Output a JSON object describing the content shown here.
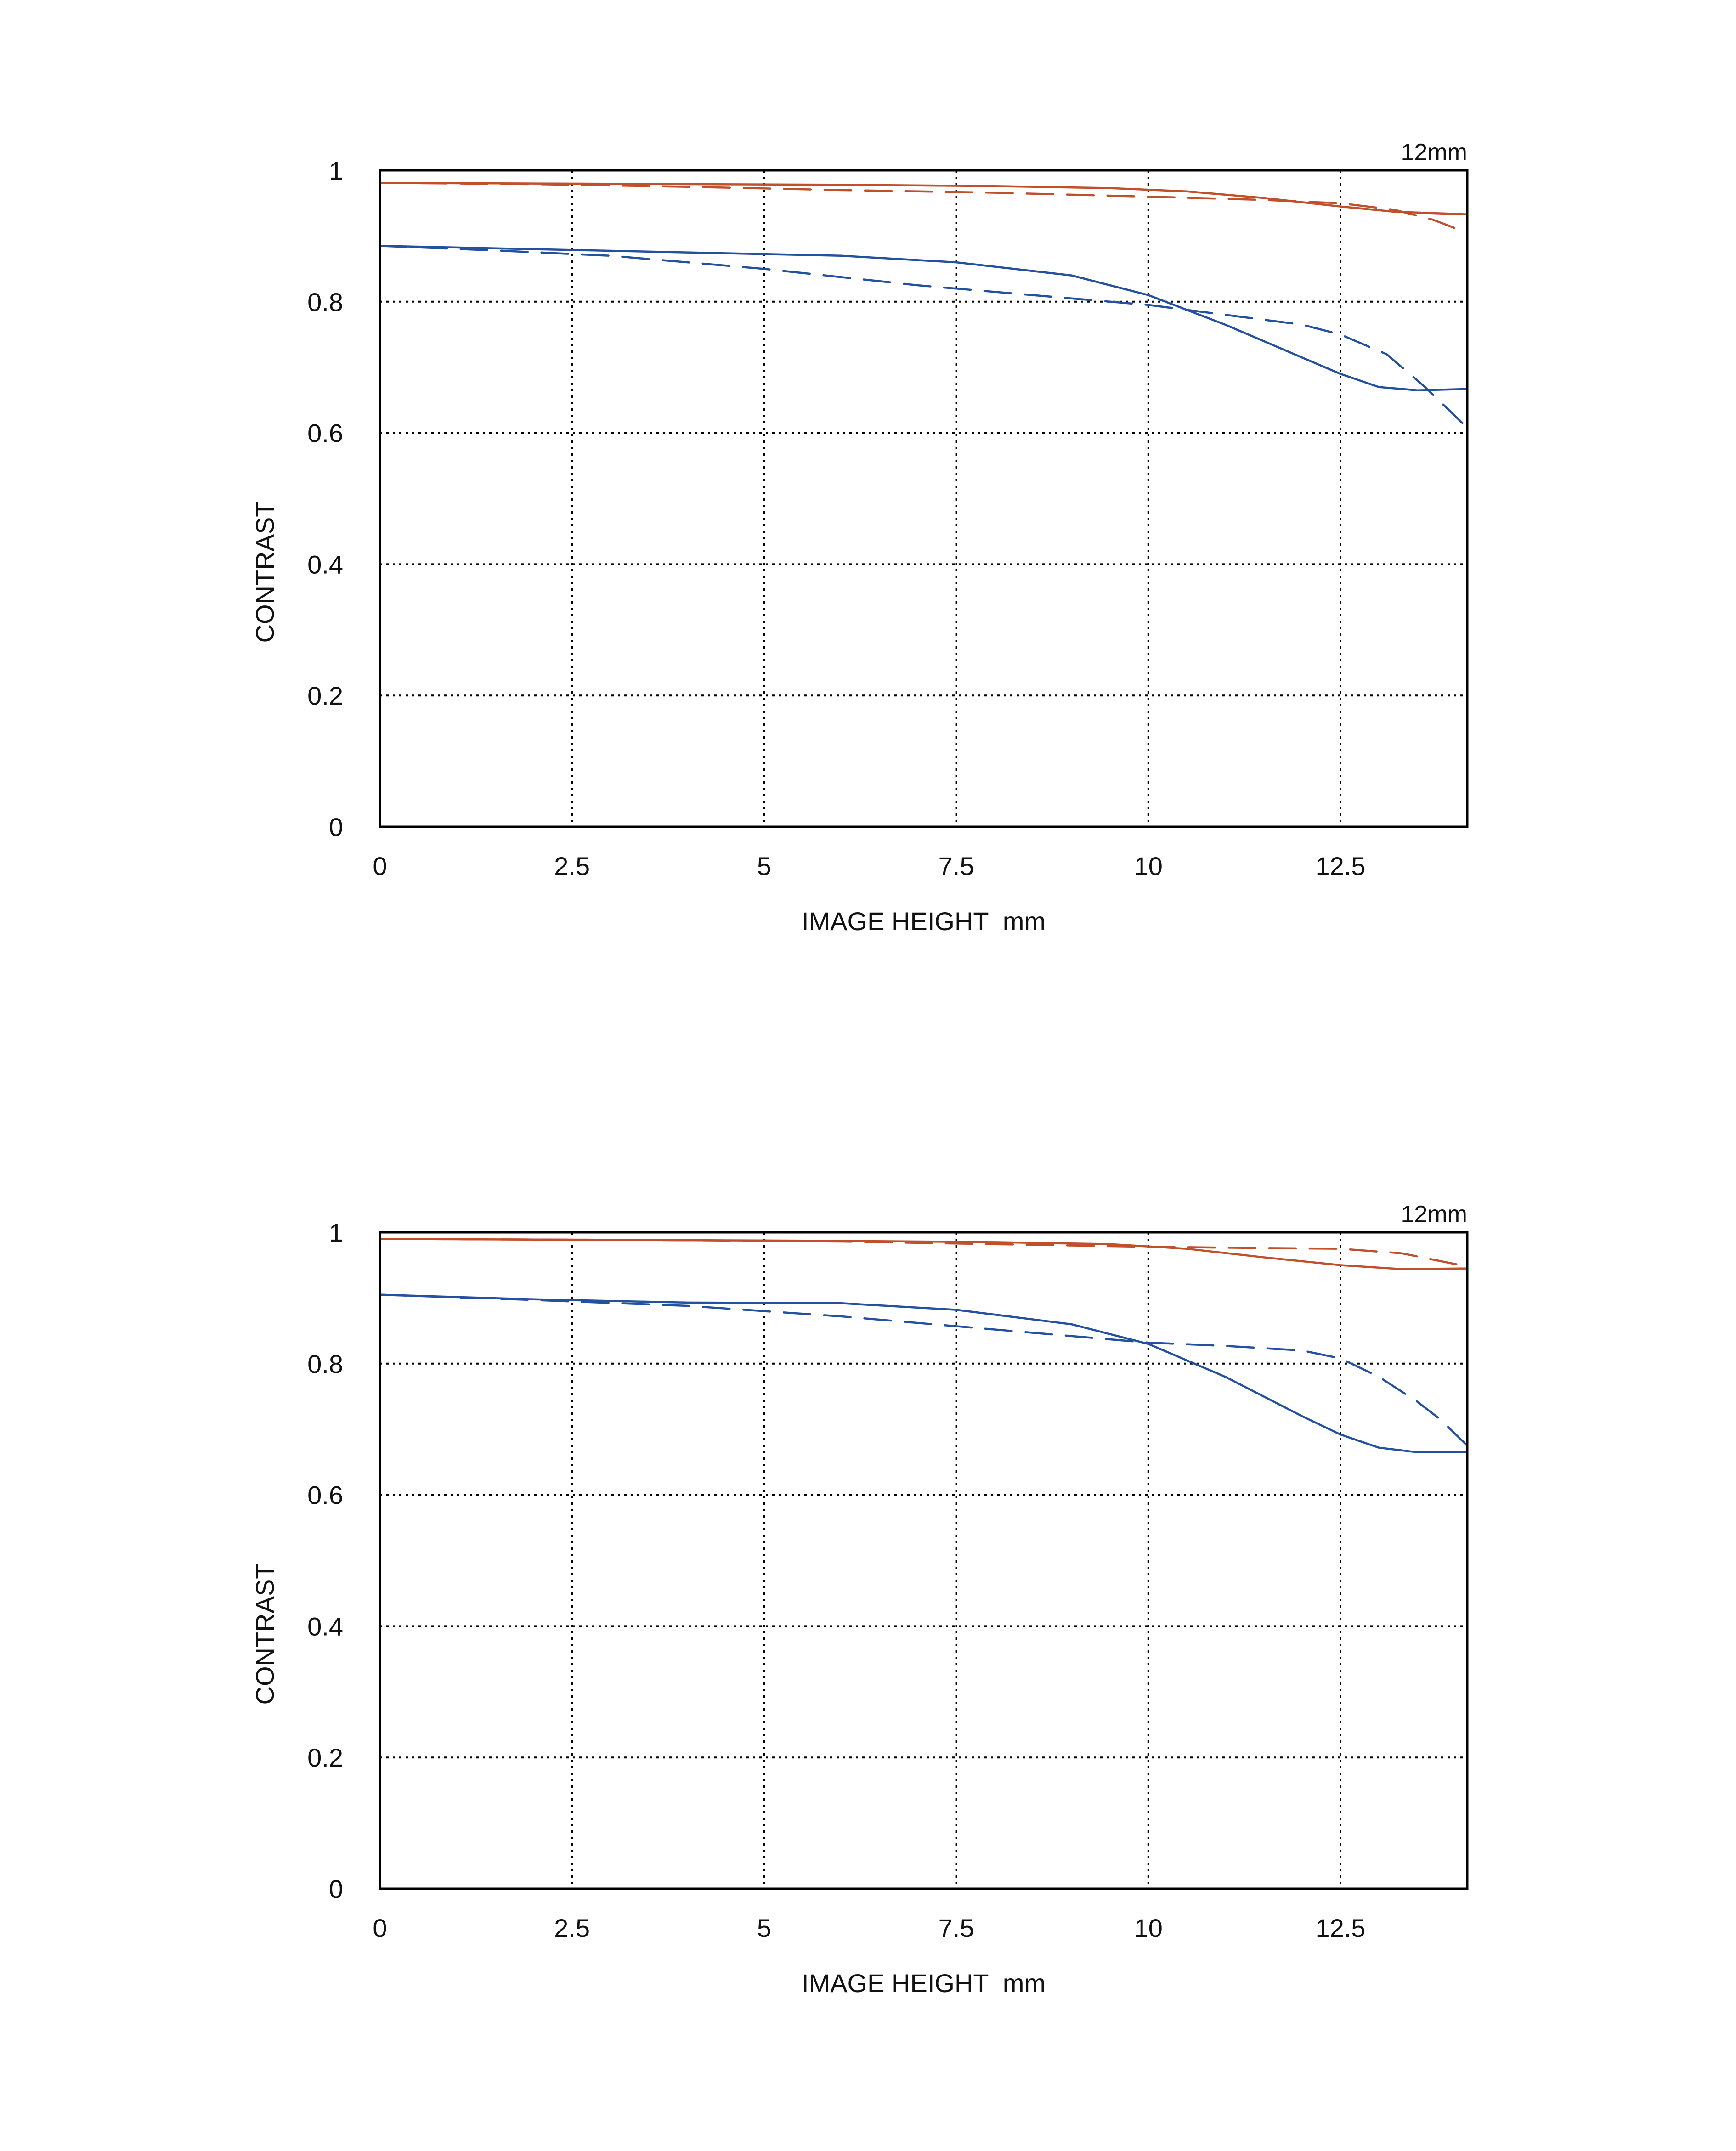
{
  "colors": {
    "sagittal_red": "#c0502c",
    "tangential_blue": "#2450a0"
  },
  "chart_data": [
    {
      "type": "line",
      "title": "12mm",
      "xlabel": "IMAGE HEIGHT  mm",
      "ylabel": "CONTRAST",
      "xlim": [
        0,
        14.15
      ],
      "ylim": [
        0,
        1
      ],
      "xticks": [
        "0",
        "2.5",
        "5",
        "7.5",
        "10",
        "12.5"
      ],
      "xtick_values": [
        0,
        2.5,
        5,
        7.5,
        10,
        12.5
      ],
      "yticks": [
        "0",
        "0.2",
        "0.4",
        "0.6",
        "0.8",
        "1"
      ],
      "ytick_values": [
        0,
        0.2,
        0.4,
        0.6,
        0.8,
        1
      ],
      "grid": true,
      "series": [
        {
          "color": "#c0502c",
          "dash": false,
          "points": [
            [
              0,
              0.981
            ],
            [
              2,
              0.98
            ],
            [
              4,
              0.979
            ],
            [
              6,
              0.978
            ],
            [
              8,
              0.976
            ],
            [
              9.5,
              0.973
            ],
            [
              10.5,
              0.968
            ],
            [
              11.5,
              0.958
            ],
            [
              12.5,
              0.945
            ],
            [
              13.2,
              0.937
            ],
            [
              14.15,
              0.933
            ]
          ]
        },
        {
          "color": "#c0502c",
          "dash": true,
          "points": [
            [
              0,
              0.981
            ],
            [
              2,
              0.979
            ],
            [
              4,
              0.975
            ],
            [
              6,
              0.97
            ],
            [
              8,
              0.966
            ],
            [
              10,
              0.96
            ],
            [
              11.5,
              0.955
            ],
            [
              12.5,
              0.95
            ],
            [
              13.2,
              0.94
            ],
            [
              13.7,
              0.925
            ],
            [
              14.15,
              0.905
            ]
          ]
        },
        {
          "color": "#2450a0",
          "dash": false,
          "points": [
            [
              0,
              0.885
            ],
            [
              2,
              0.88
            ],
            [
              4,
              0.875
            ],
            [
              6,
              0.87
            ],
            [
              7.5,
              0.86
            ],
            [
              9,
              0.84
            ],
            [
              10,
              0.81
            ],
            [
              11,
              0.765
            ],
            [
              12,
              0.715
            ],
            [
              12.5,
              0.69
            ],
            [
              13,
              0.67
            ],
            [
              13.5,
              0.665
            ],
            [
              14.15,
              0.667
            ]
          ]
        },
        {
          "color": "#2450a0",
          "dash": true,
          "points": [
            [
              0,
              0.885
            ],
            [
              1.5,
              0.878
            ],
            [
              3,
              0.87
            ],
            [
              5,
              0.85
            ],
            [
              7,
              0.825
            ],
            [
              9,
              0.805
            ],
            [
              10,
              0.795
            ],
            [
              11,
              0.78
            ],
            [
              12,
              0.765
            ],
            [
              12.5,
              0.75
            ],
            [
              13.1,
              0.72
            ],
            [
              13.6,
              0.67
            ],
            [
              14.15,
              0.608
            ]
          ]
        }
      ]
    },
    {
      "type": "line",
      "title": "12mm",
      "xlabel": "IMAGE HEIGHT  mm",
      "ylabel": "CONTRAST",
      "xlim": [
        0,
        14.15
      ],
      "ylim": [
        0,
        1
      ],
      "xticks": [
        "0",
        "2.5",
        "5",
        "7.5",
        "10",
        "12.5"
      ],
      "xtick_values": [
        0,
        2.5,
        5,
        7.5,
        10,
        12.5
      ],
      "yticks": [
        "0",
        "0.2",
        "0.4",
        "0.6",
        "0.8",
        "1"
      ],
      "ytick_values": [
        0,
        0.2,
        0.4,
        0.6,
        0.8,
        1
      ],
      "grid": true,
      "series": [
        {
          "color": "#c0502c",
          "dash": false,
          "points": [
            [
              0,
              0.99
            ],
            [
              2,
              0.989
            ],
            [
              4,
              0.988
            ],
            [
              6,
              0.987
            ],
            [
              8,
              0.985
            ],
            [
              9.5,
              0.982
            ],
            [
              10.5,
              0.975
            ],
            [
              11.5,
              0.962
            ],
            [
              12.5,
              0.95
            ],
            [
              13.3,
              0.944
            ],
            [
              14.15,
              0.945
            ]
          ]
        },
        {
          "color": "#c0502c",
          "dash": true,
          "points": [
            [
              0,
              0.99
            ],
            [
              2,
              0.989
            ],
            [
              4,
              0.988
            ],
            [
              6,
              0.986
            ],
            [
              8,
              0.982
            ],
            [
              10,
              0.978
            ],
            [
              11.5,
              0.976
            ],
            [
              12.5,
              0.975
            ],
            [
              13.3,
              0.968
            ],
            [
              14.15,
              0.948
            ]
          ]
        },
        {
          "color": "#2450a0",
          "dash": false,
          "points": [
            [
              0,
              0.905
            ],
            [
              2,
              0.898
            ],
            [
              4,
              0.893
            ],
            [
              6,
              0.892
            ],
            [
              7.5,
              0.882
            ],
            [
              9,
              0.86
            ],
            [
              10,
              0.83
            ],
            [
              11,
              0.78
            ],
            [
              12,
              0.72
            ],
            [
              12.5,
              0.692
            ],
            [
              13,
              0.672
            ],
            [
              13.5,
              0.665
            ],
            [
              14.15,
              0.665
            ]
          ]
        },
        {
          "color": "#2450a0",
          "dash": true,
          "points": [
            [
              0,
              0.905
            ],
            [
              2,
              0.897
            ],
            [
              4,
              0.888
            ],
            [
              6,
              0.872
            ],
            [
              8,
              0.852
            ],
            [
              10,
              0.832
            ],
            [
              11,
              0.827
            ],
            [
              12,
              0.82
            ],
            [
              12.5,
              0.808
            ],
            [
              13,
              0.78
            ],
            [
              13.5,
              0.742
            ],
            [
              13.8,
              0.715
            ],
            [
              14.15,
              0.675
            ]
          ]
        }
      ]
    }
  ]
}
